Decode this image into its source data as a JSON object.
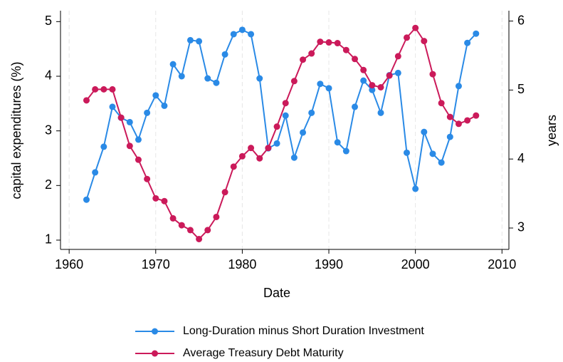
{
  "chart_data": {
    "type": "line",
    "x_label": "Date",
    "y_label": "capital expenditures (%)",
    "y2_label": "years",
    "x": [
      1962,
      1963,
      1964,
      1965,
      1966,
      1967,
      1968,
      1969,
      1970,
      1971,
      1972,
      1973,
      1974,
      1975,
      1976,
      1977,
      1978,
      1979,
      1980,
      1981,
      1982,
      1983,
      1984,
      1985,
      1986,
      1987,
      1988,
      1989,
      1990,
      1991,
      1992,
      1993,
      1994,
      1995,
      1996,
      1997,
      1998,
      1999,
      2000,
      2001,
      2002,
      2003,
      2004,
      2005,
      2006,
      2007
    ],
    "series": [
      {
        "name": "Long-Duration minus Short Duration Investment",
        "color": "#2a8ae6",
        "axis": "y",
        "values": [
          1.74,
          2.24,
          2.71,
          3.44,
          3.24,
          3.16,
          2.84,
          3.33,
          3.65,
          3.46,
          4.22,
          4.0,
          4.66,
          4.64,
          3.96,
          3.88,
          4.4,
          4.77,
          4.85,
          4.77,
          3.96,
          2.68,
          2.77,
          3.28,
          2.51,
          2.97,
          3.33,
          3.86,
          3.78,
          2.79,
          2.63,
          3.44,
          3.92,
          3.75,
          3.33,
          4.02,
          4.06,
          2.6,
          1.94,
          2.98,
          2.58,
          2.42,
          2.89,
          3.82,
          4.61,
          4.78
        ]
      },
      {
        "name": "Average Treasury Debt Maturity",
        "color": "#cb1a5a",
        "axis": "y2",
        "values": [
          4.85,
          5.01,
          5.01,
          5.01,
          4.6,
          4.19,
          3.99,
          3.71,
          3.43,
          3.39,
          3.14,
          3.04,
          2.97,
          2.84,
          2.97,
          3.16,
          3.52,
          3.89,
          4.04,
          4.16,
          4.01,
          4.16,
          4.47,
          4.81,
          5.13,
          5.44,
          5.53,
          5.7,
          5.69,
          5.68,
          5.58,
          5.45,
          5.29,
          5.07,
          5.04,
          5.21,
          5.49,
          5.76,
          5.9,
          5.71,
          5.23,
          4.81,
          4.61,
          4.51,
          4.56,
          4.63
        ]
      }
    ],
    "xlim": [
      1959,
      2010.8
    ],
    "xticks": [
      1960,
      1970,
      1980,
      1990,
      2000,
      2010
    ],
    "ylim": [
      0.83,
      5.2
    ],
    "yticks": [
      1,
      2,
      3,
      4,
      5
    ],
    "y2lim": [
      2.69,
      6.15
    ],
    "y2ticks": [
      3,
      4,
      5,
      6
    ],
    "grid": "x",
    "legend": "bottom"
  }
}
